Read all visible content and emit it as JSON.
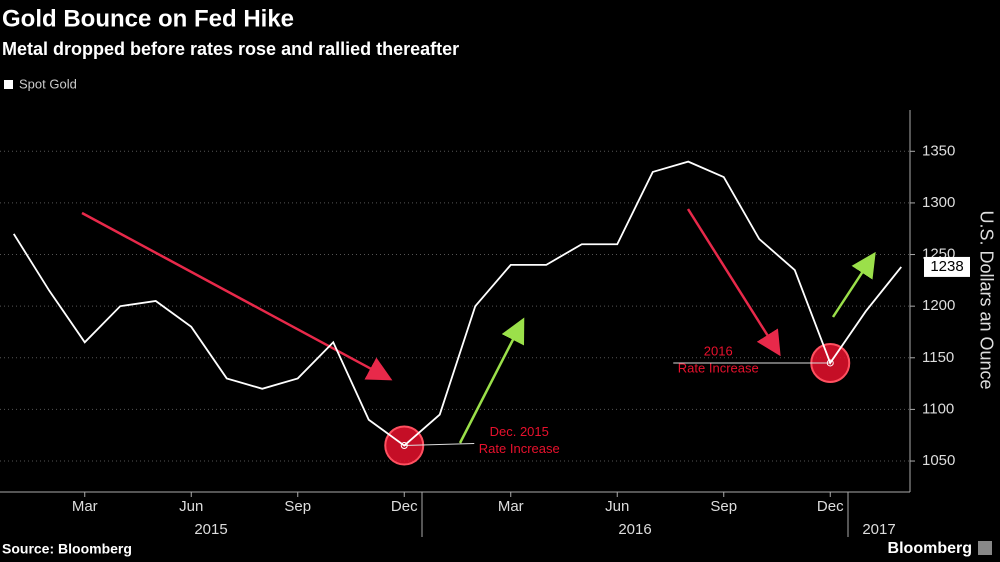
{
  "chart_data": {
    "type": "line",
    "title": "Gold Bounce on Fed Hike",
    "subtitle": "Metal dropped before rates rose and rallied thereafter",
    "y_axis_label": "U.S. Dollars an Ounce",
    "source": "Source: Bloomberg",
    "brand": "Bloomberg",
    "x": [
      "2015-01",
      "2015-02",
      "2015-03",
      "2015-04",
      "2015-05",
      "2015-06",
      "2015-07",
      "2015-08",
      "2015-09",
      "2015-10",
      "2015-11",
      "2015-12",
      "2016-01",
      "2016-02",
      "2016-03",
      "2016-04",
      "2016-05",
      "2016-06",
      "2016-07",
      "2016-08",
      "2016-09",
      "2016-10",
      "2016-11",
      "2016-12",
      "2017-01",
      "2017-02"
    ],
    "series": [
      {
        "name": "Spot Gold",
        "color": "#ffffff",
        "values": [
          1270,
          1215,
          1165,
          1200,
          1205,
          1180,
          1130,
          1120,
          1130,
          1165,
          1090,
          1065,
          1095,
          1200,
          1240,
          1240,
          1260,
          1260,
          1330,
          1340,
          1325,
          1265,
          1235,
          1145,
          1195,
          1238
        ],
        "last_label": "1238"
      }
    ],
    "xticks": [
      {
        "value": "2015-03",
        "label": "Mar"
      },
      {
        "value": "2015-06",
        "label": "Jun"
      },
      {
        "value": "2015-09",
        "label": "Sep"
      },
      {
        "value": "2015-12",
        "label": "Dec"
      },
      {
        "value": "2016-03",
        "label": "Mar"
      },
      {
        "value": "2016-06",
        "label": "Jun"
      },
      {
        "value": "2016-09",
        "label": "Sep"
      },
      {
        "value": "2016-12",
        "label": "Dec"
      }
    ],
    "year_labels": [
      "2015",
      "2016",
      "2017"
    ],
    "ylim": [
      1020,
      1390
    ],
    "yticks": [
      1050,
      1100,
      1150,
      1200,
      1250,
      1300,
      1350
    ],
    "grid": true,
    "annotations": [
      {
        "x": "2015-12",
        "lines": [
          "Dec. 2015",
          "Rate Increase"
        ],
        "color": "#e8112d"
      },
      {
        "x": "2016-12",
        "lines": [
          "2016",
          "Rate Increase"
        ],
        "color": "#e8112d"
      }
    ]
  }
}
